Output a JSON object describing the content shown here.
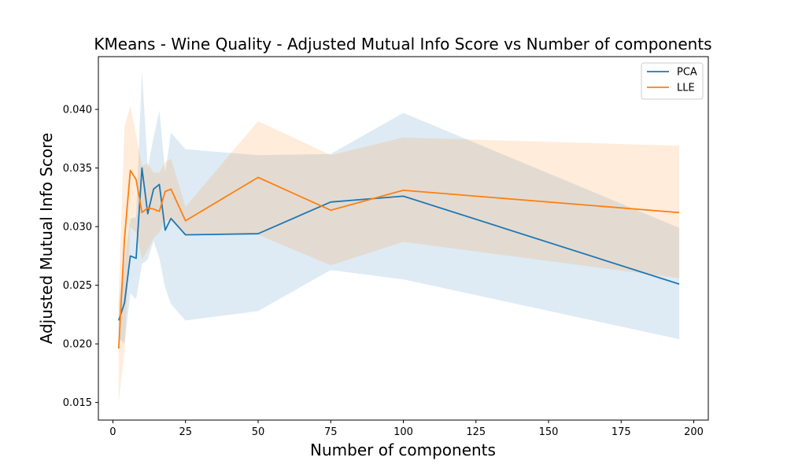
{
  "chart_data": {
    "type": "line",
    "title": "KMeans - Wine Quality - Adjusted Mutual Info Score vs Number of components",
    "xlabel": "Number of components",
    "ylabel": "Adjusted Mutual Info Score",
    "xlim": [
      -5,
      205
    ],
    "ylim": [
      0.0135,
      0.0445
    ],
    "xticks": [
      0,
      25,
      50,
      75,
      100,
      125,
      150,
      175,
      200
    ],
    "xtick_labels": [
      "0",
      "25",
      "50",
      "75",
      "100",
      "125",
      "150",
      "175",
      "200"
    ],
    "yticks": [
      0.015,
      0.02,
      0.025,
      0.03,
      0.035,
      0.04
    ],
    "ytick_labels": [
      "0.015",
      "0.020",
      "0.025",
      "0.030",
      "0.035",
      "0.040"
    ],
    "grid": false,
    "legend_position": "top-right",
    "series": [
      {
        "name": "PCA",
        "color": "#1f77b4",
        "x": [
          2,
          4,
          6,
          8,
          10,
          12,
          14,
          16,
          18,
          20,
          25,
          50,
          75,
          100,
          195
        ],
        "y": [
          0.022,
          0.0235,
          0.0275,
          0.0273,
          0.035,
          0.0311,
          0.0332,
          0.0336,
          0.0297,
          0.0307,
          0.0293,
          0.0294,
          0.0321,
          0.0326,
          0.0251
        ],
        "lower": [
          0.0205,
          0.02,
          0.0243,
          0.0238,
          0.0268,
          0.0272,
          0.0288,
          0.0273,
          0.0248,
          0.0234,
          0.022,
          0.0228,
          0.0263,
          0.0255,
          0.0204
        ],
        "upper": [
          0.0235,
          0.027,
          0.0307,
          0.0308,
          0.0433,
          0.035,
          0.0376,
          0.0399,
          0.0346,
          0.038,
          0.0366,
          0.0361,
          0.0362,
          0.0397,
          0.0299
        ]
      },
      {
        "name": "LLE",
        "color": "#ff7f0e",
        "x": [
          2,
          4,
          6,
          8,
          10,
          12,
          14,
          16,
          18,
          20,
          25,
          50,
          75,
          100,
          195
        ],
        "y": [
          0.0196,
          0.029,
          0.0348,
          0.034,
          0.0312,
          0.0316,
          0.0315,
          0.0313,
          0.033,
          0.0332,
          0.0305,
          0.0342,
          0.0314,
          0.0331,
          0.0312
        ],
        "lower": [
          0.015,
          0.0195,
          0.03,
          0.0295,
          0.0272,
          0.028,
          0.029,
          0.0295,
          0.0305,
          0.0305,
          0.0293,
          0.0293,
          0.0267,
          0.0287,
          0.0256
        ],
        "upper": [
          0.0242,
          0.0385,
          0.0403,
          0.0378,
          0.0352,
          0.0354,
          0.0346,
          0.0346,
          0.0355,
          0.0358,
          0.0317,
          0.039,
          0.0361,
          0.0376,
          0.0369
        ]
      }
    ]
  }
}
